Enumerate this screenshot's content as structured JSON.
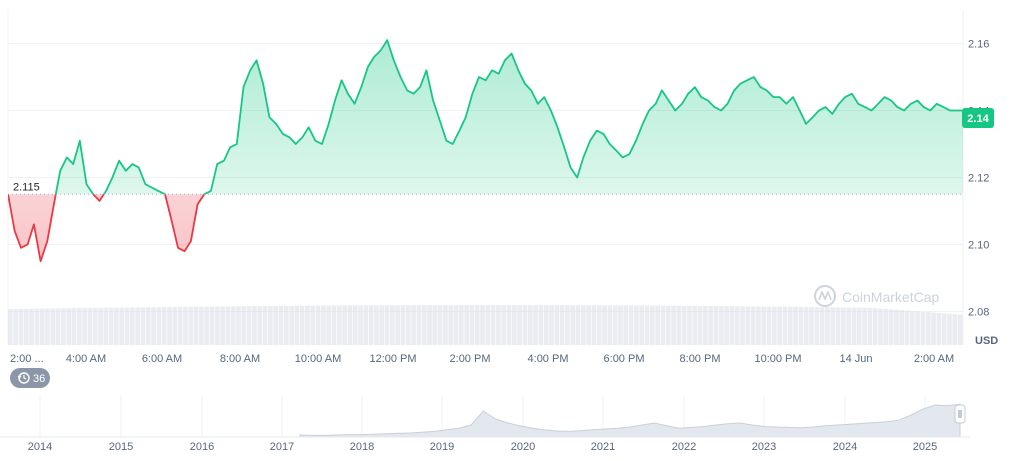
{
  "chart_data": {
    "type": "area",
    "baseline": 2.115,
    "baseline_label": "2.115",
    "current_price_label": "2.14",
    "currency_label": "USD",
    "watermark": "CoinMarketCap",
    "ylim": [
      2.07,
      2.17
    ],
    "yticks": [
      {
        "value": 2.16,
        "label": "2.16"
      },
      {
        "value": 2.14,
        "label": "2.14"
      },
      {
        "value": 2.12,
        "label": "2.12"
      },
      {
        "value": 2.1,
        "label": "2.10"
      },
      {
        "value": 2.08,
        "label": "2.08"
      }
    ],
    "xticks": [
      "2:00 ...",
      "4:00 AM",
      "6:00 AM",
      "8:00 AM",
      "10:00 AM",
      "12:00 PM",
      "2:00 PM",
      "4:00 PM",
      "6:00 PM",
      "8:00 PM",
      "10:00 PM",
      "14 Jun",
      "2:00 AM"
    ],
    "series": [
      {
        "x_hours": [
          0,
          0.17,
          0.33,
          0.5,
          0.66,
          0.83,
          1.0,
          1.17,
          1.33,
          1.5,
          1.66,
          1.83,
          2.0,
          2.17,
          2.33,
          2.5,
          2.66,
          2.83,
          3.0,
          3.17,
          3.33,
          3.5,
          3.66,
          3.83,
          4.0,
          4.17,
          4.33,
          4.5,
          4.66,
          4.83,
          5.0,
          5.17,
          5.33,
          5.5,
          5.66,
          5.83,
          6.0,
          6.17,
          6.33,
          6.5,
          6.66,
          6.83,
          7.0,
          7.17,
          7.33,
          7.5,
          7.66,
          7.83,
          8.0,
          8.17,
          8.33,
          8.5,
          8.66,
          8.83,
          9.0,
          9.17,
          9.33,
          9.5,
          9.66,
          9.83,
          10.0,
          10.17,
          10.33,
          10.5,
          10.66,
          10.83,
          11.0,
          11.17,
          11.33,
          11.5,
          11.66,
          11.83,
          12.0,
          12.17,
          12.33,
          12.5,
          12.66,
          12.83,
          13.0,
          13.17,
          13.33,
          13.5,
          13.66,
          13.83,
          14.0,
          14.17,
          14.33,
          14.5,
          14.66,
          14.83,
          15.0,
          15.17,
          15.33,
          15.5,
          15.66,
          15.83,
          16.0,
          16.17,
          16.33,
          16.5,
          16.66,
          16.83,
          17.0,
          17.17,
          17.33,
          17.5,
          17.66,
          17.83,
          18.0,
          18.17,
          18.33,
          18.5,
          18.66,
          18.83,
          19.0,
          19.17,
          19.33,
          19.5,
          19.66,
          19.83,
          20.0,
          20.17,
          20.33,
          20.5,
          20.66,
          20.83,
          21.0,
          21.17,
          21.33,
          21.5,
          21.66,
          21.83,
          22.0,
          22.17,
          22.33,
          22.5,
          22.66,
          22.83,
          23.0,
          23.17,
          23.33,
          23.5,
          23.66,
          23.83,
          24.0,
          24.17,
          24.33
        ],
        "y": [
          2.115,
          2.104,
          2.099,
          2.1,
          2.106,
          2.095,
          2.101,
          2.112,
          2.122,
          2.126,
          2.124,
          2.131,
          2.118,
          2.115,
          2.113,
          2.116,
          2.12,
          2.125,
          2.122,
          2.124,
          2.123,
          2.118,
          2.117,
          2.116,
          2.115,
          2.107,
          2.099,
          2.098,
          2.101,
          2.112,
          2.115,
          2.116,
          2.124,
          2.125,
          2.129,
          2.13,
          2.147,
          2.152,
          2.155,
          2.148,
          2.138,
          2.136,
          2.133,
          2.132,
          2.13,
          2.132,
          2.135,
          2.131,
          2.13,
          2.136,
          2.143,
          2.149,
          2.145,
          2.142,
          2.147,
          2.153,
          2.156,
          2.158,
          2.161,
          2.155,
          2.15,
          2.146,
          2.145,
          2.147,
          2.152,
          2.143,
          2.137,
          2.131,
          2.13,
          2.134,
          2.138,
          2.145,
          2.15,
          2.149,
          2.152,
          2.151,
          2.155,
          2.157,
          2.152,
          2.148,
          2.146,
          2.142,
          2.144,
          2.14,
          2.135,
          2.129,
          2.123,
          2.12,
          2.126,
          2.131,
          2.134,
          2.133,
          2.13,
          2.128,
          2.126,
          2.127,
          2.131,
          2.136,
          2.14,
          2.142,
          2.146,
          2.143,
          2.14,
          2.142,
          2.145,
          2.147,
          2.144,
          2.143,
          2.141,
          2.14,
          2.142,
          2.146,
          2.148,
          2.149,
          2.15,
          2.147,
          2.146,
          2.144,
          2.144,
          2.142,
          2.144,
          2.14,
          2.136,
          2.138,
          2.14,
          2.141,
          2.139,
          2.142,
          2.144,
          2.145,
          2.142,
          2.141,
          2.14,
          2.142,
          2.144,
          2.143,
          2.141,
          2.14,
          2.142,
          2.143,
          2.141,
          2.14,
          2.142,
          2.141,
          2.14,
          2.14,
          2.14
        ]
      }
    ],
    "volume_bar_count": 180,
    "range_selector": {
      "badge_label": "36",
      "years": [
        "2014",
        "2015",
        "2016",
        "2017",
        "2018",
        "2019",
        "2020",
        "2021",
        "2022",
        "2023",
        "2024",
        "2025"
      ],
      "history_series": [
        0.05,
        0.04,
        0.04,
        0.05,
        0.06,
        0.06,
        0.07,
        0.08,
        0.09,
        0.1,
        0.12,
        0.14,
        0.18,
        0.22,
        0.3,
        0.65,
        0.45,
        0.35,
        0.28,
        0.22,
        0.18,
        0.15,
        0.14,
        0.16,
        0.18,
        0.2,
        0.22,
        0.25,
        0.3,
        0.35,
        0.28,
        0.22,
        0.24,
        0.26,
        0.3,
        0.33,
        0.35,
        0.3,
        0.26,
        0.25,
        0.24,
        0.23,
        0.25,
        0.28,
        0.3,
        0.32,
        0.34,
        0.36,
        0.38,
        0.42,
        0.55,
        0.7,
        0.8,
        0.78,
        0.82
      ]
    },
    "colors": {
      "up_line": "#16c784",
      "up_fill": "#16c784",
      "down_line": "#ea3943",
      "down_fill": "#ea3943",
      "grid": "#eff2f5",
      "axis_text": "#58667e",
      "volume": "#d8dde6",
      "badge_bg": "#8b97a8"
    }
  }
}
